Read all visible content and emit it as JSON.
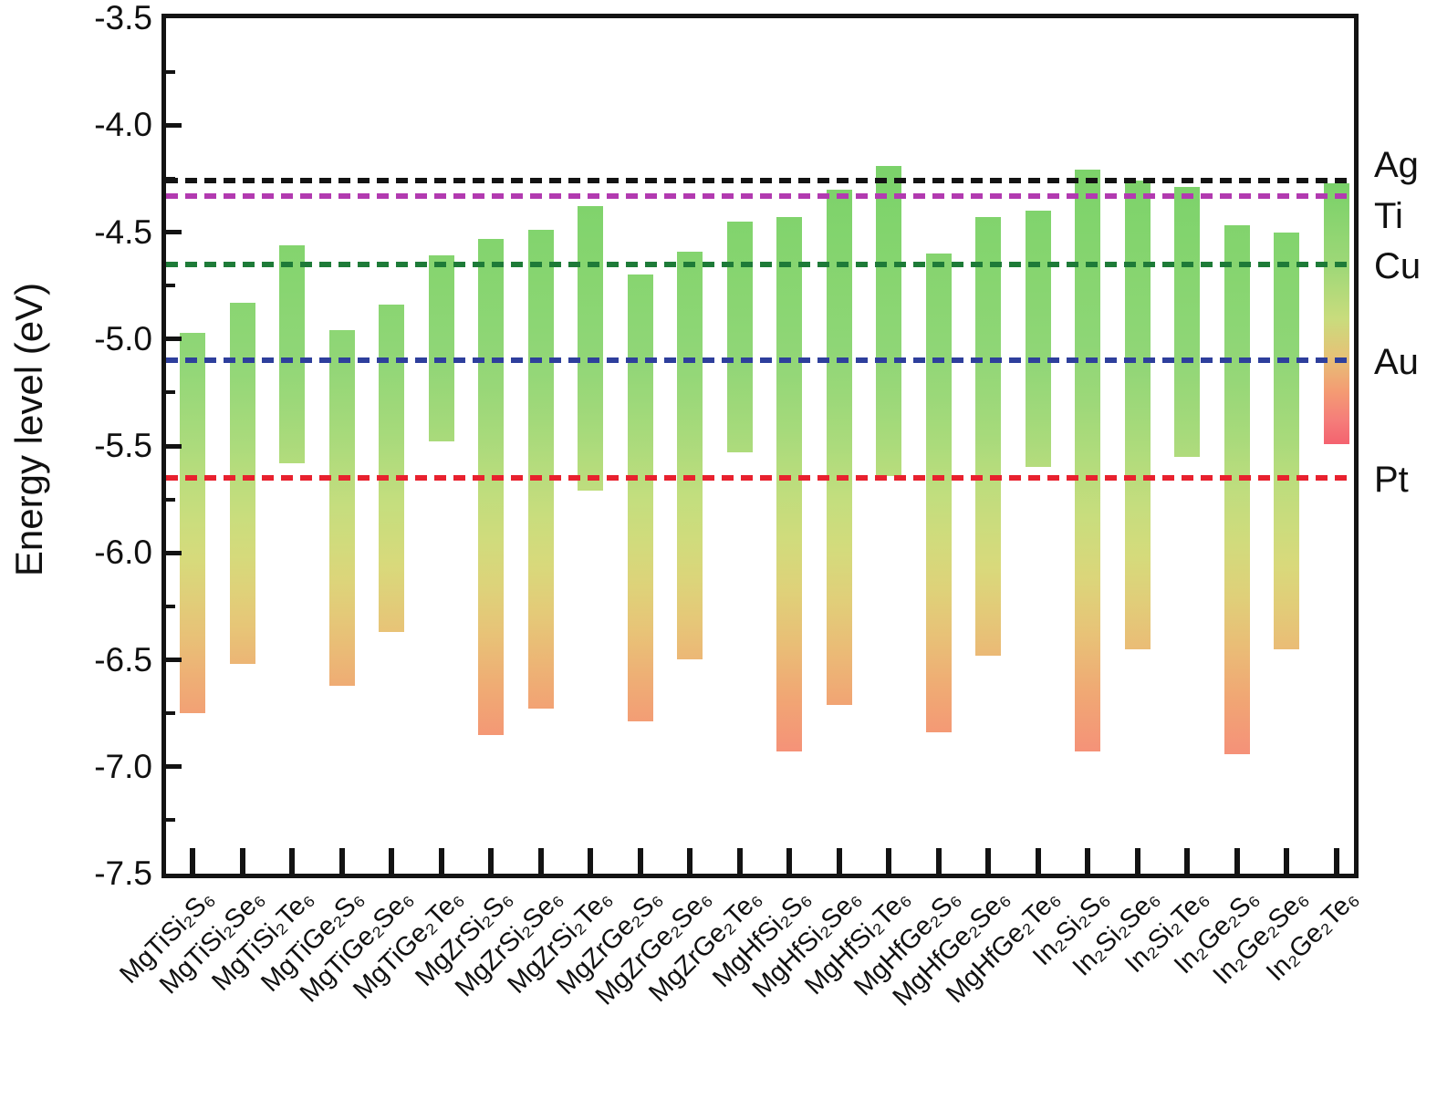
{
  "figure": {
    "ylabel": "Energy level (eV)",
    "y_axis": {
      "min": -7.5,
      "max": -3.5,
      "major_step": 0.5,
      "minor_step": 0.25,
      "tick_labels": [
        "-3.5",
        "-4.0",
        "-4.5",
        "-5.0",
        "-5.5",
        "-6.0",
        "-6.5",
        "-7.0",
        "-7.5"
      ]
    }
  },
  "chart_data": {
    "type": "bar",
    "subtype": "floating-range-bars",
    "title": "",
    "xlabel": "",
    "ylabel": "Energy level (eV)",
    "ylim": [
      -7.5,
      -3.5
    ],
    "grid": false,
    "legend_position": "none",
    "categories": [
      "MgTiSi₂S₆",
      "MgTiSi₂Se₆",
      "MgTiSi₂Te₆",
      "MgTiGe₂S₆",
      "MgTiGe₂Se₆",
      "MgTiGe₂Te₆",
      "MgZrSi₂S₆",
      "MgZrSi₂Se₆",
      "MgZrSi₂Te₆",
      "MgZrGe₂S₆",
      "MgZrGe₂Se₆",
      "MgZrGe₂Te₆",
      "MgHfSi₂S₆",
      "MgHfSi₂Se₆",
      "MgHfSi₂Te₆",
      "MgHfGe₂S₆",
      "MgHfGe₂Se₆",
      "MgHfGe₂Te₆",
      "In₂Si₂S₆",
      "In₂Si₂Se₆",
      "In₂Si₂Te₆",
      "In₂Ge₂S₆",
      "In₂Ge₂Se₆",
      "In₂Ge₂Te₆"
    ],
    "series": [
      {
        "name": "bar_top",
        "values": [
          -4.97,
          -4.83,
          -4.56,
          -4.96,
          -4.84,
          -4.61,
          -4.53,
          -4.49,
          -4.38,
          -4.7,
          -4.59,
          -4.45,
          -4.43,
          -4.3,
          -4.19,
          -4.6,
          -4.43,
          -4.4,
          -4.21,
          -4.26,
          -4.29,
          -4.47,
          -4.5,
          -4.27
        ]
      },
      {
        "name": "bar_bottom",
        "values": [
          -6.75,
          -6.52,
          -5.58,
          -6.62,
          -6.37,
          -5.48,
          -6.85,
          -6.73,
          -5.71,
          -6.79,
          -6.5,
          -5.53,
          -6.93,
          -6.71,
          -5.64,
          -6.84,
          -6.48,
          -5.6,
          -6.93,
          -6.45,
          -5.55,
          -6.94,
          -6.45,
          -5.49
        ]
      }
    ],
    "reference_lines": [
      {
        "label": "Ag",
        "value": -4.26,
        "color": "#131313"
      },
      {
        "label": "Ti",
        "value": -4.33,
        "color": "#b23ab0"
      },
      {
        "label": "Cu",
        "value": -4.65,
        "color": "#1e7b38"
      },
      {
        "label": "Au",
        "value": -5.1,
        "color": "#2e3f9c"
      },
      {
        "label": "Pt",
        "value": -5.65,
        "color": "#e8212e"
      }
    ],
    "bar_gradient": {
      "energy_color_scale": [
        [
          -4.1,
          "#79d169"
        ],
        [
          -4.7,
          "#87d570"
        ],
        [
          -5.1,
          "#90d677"
        ],
        [
          -5.45,
          "#a7da7b"
        ],
        [
          -5.75,
          "#c3de7e"
        ],
        [
          -6.05,
          "#d8da7b"
        ],
        [
          -6.35,
          "#e7c577"
        ],
        [
          -6.65,
          "#f0a974"
        ],
        [
          -6.85,
          "#f49875"
        ],
        [
          -7.0,
          "#f68d7b"
        ]
      ],
      "full_gradient_bar_indices": [
        23
      ],
      "full_gradient_stops": [
        [
          0,
          "#79d169"
        ],
        [
          0.32,
          "#9fd878"
        ],
        [
          0.52,
          "#c9dc7d"
        ],
        [
          0.66,
          "#e5c377"
        ],
        [
          0.8,
          "#f49b73"
        ],
        [
          0.91,
          "#f57d7a"
        ],
        [
          1,
          "#f4626f"
        ]
      ]
    }
  }
}
